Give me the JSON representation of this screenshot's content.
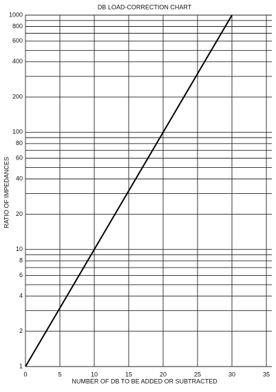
{
  "chart_data": {
    "type": "line",
    "title": "DB LOAD-CORRECTION CHART",
    "x_label": "NUMBER OF DB TO BE ADDED OR SUBTRACTED",
    "y_label": "RATIO OF IMPEDANCES",
    "x": [
      0,
      30
    ],
    "series": [
      {
        "name": "ratio",
        "color": "#000000",
        "values": [
          1,
          1000
        ]
      }
    ],
    "xlim": [
      0,
      35
    ],
    "xticks": [
      0,
      5,
      10,
      15,
      20,
      25,
      30,
      35
    ],
    "ylim": [
      1,
      1000
    ],
    "yscale": "log",
    "yticks": [
      1,
      2,
      4,
      6,
      8,
      10,
      20,
      40,
      60,
      80,
      100,
      200,
      400,
      600,
      800,
      1000
    ],
    "yminor": [
      3,
      5,
      7,
      9,
      30,
      50,
      70,
      90,
      300,
      500,
      700,
      900
    ],
    "grid": true
  }
}
